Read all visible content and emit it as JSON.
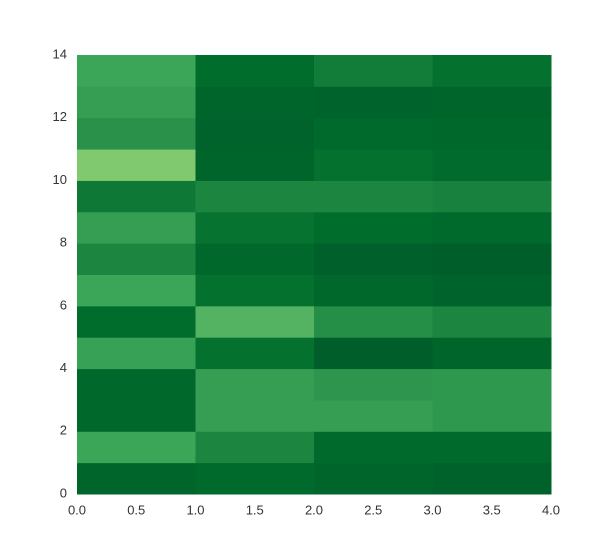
{
  "chart_data": {
    "type": "heatmap",
    "xlim": [
      0,
      4
    ],
    "ylim": [
      0,
      14
    ],
    "xticks": [
      {
        "value": 0,
        "label": "0.0"
      },
      {
        "value": 0.5,
        "label": "0.5"
      },
      {
        "value": 1,
        "label": "1.0"
      },
      {
        "value": 1.5,
        "label": "1.5"
      },
      {
        "value": 2,
        "label": "2.0"
      },
      {
        "value": 2.5,
        "label": "2.5"
      },
      {
        "value": 3,
        "label": "3.0"
      },
      {
        "value": 3.5,
        "label": "3.5"
      },
      {
        "value": 4,
        "label": "4.0"
      }
    ],
    "yticks": [
      0,
      2,
      4,
      6,
      8,
      10,
      12,
      14
    ],
    "zlim": [
      0,
      1
    ],
    "colormap": [
      "#80c96f",
      "#41ab5d",
      "#238b45",
      "#006d2c",
      "#005a2a"
    ],
    "z": [
      [
        0.85,
        0.8,
        0.85,
        0.9
      ],
      [
        0.3,
        0.55,
        0.8,
        0.8
      ],
      [
        0.82,
        0.35,
        0.35,
        0.4
      ],
      [
        0.82,
        0.35,
        0.42,
        0.4
      ],
      [
        0.33,
        0.72,
        0.95,
        0.85
      ],
      [
        0.75,
        0.18,
        0.48,
        0.55
      ],
      [
        0.3,
        0.72,
        0.82,
        0.88
      ],
      [
        0.55,
        0.82,
        0.92,
        0.95
      ],
      [
        0.35,
        0.7,
        0.75,
        0.8
      ],
      [
        0.65,
        0.55,
        0.55,
        0.58
      ],
      [
        0.0,
        0.85,
        0.72,
        0.78
      ],
      [
        0.45,
        0.88,
        0.8,
        0.82
      ],
      [
        0.35,
        0.85,
        0.88,
        0.85
      ],
      [
        0.3,
        0.75,
        0.62,
        0.72
      ]
    ]
  }
}
